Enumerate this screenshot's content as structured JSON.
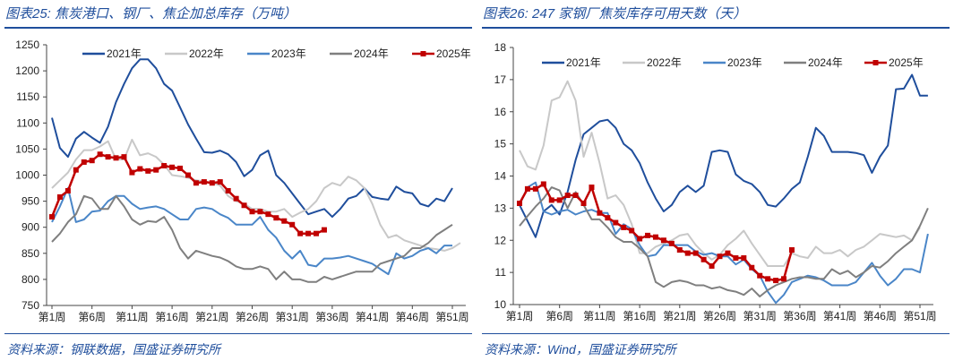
{
  "chart_data": [
    {
      "type": "line",
      "title": "图表25:  焦炭港口、钢厂、焦企加总库存（万吨）",
      "source": "资料来源：钢联数据，国盛证券研究所",
      "ylim": [
        750,
        1250
      ],
      "yticks": [
        750,
        800,
        850,
        900,
        950,
        1000,
        1050,
        1100,
        1150,
        1200,
        1250
      ],
      "xticklabels": [
        "第1周",
        "第6周",
        "第11周",
        "第16周",
        "第21周",
        "第26周",
        "第31周",
        "第36周",
        "第41周",
        "第46周",
        "第51周"
      ],
      "xlabel": "",
      "ylabel": "",
      "legend": "top",
      "grid": false,
      "series": [
        {
          "name": "2021年",
          "color": "#1f4e9c",
          "values": [
            1110,
            1052,
            1035,
            1070,
            1083,
            1072,
            1062,
            1093,
            1140,
            1175,
            1205,
            1222,
            1222,
            1205,
            1175,
            1162,
            1130,
            1097,
            1070,
            1044,
            1043,
            1047,
            1040,
            1025,
            998,
            1010,
            1038,
            1047,
            1000,
            985,
            965,
            945,
            925,
            930,
            935,
            920,
            935,
            955,
            960,
            975,
            958,
            955,
            953,
            978,
            968,
            965,
            945,
            940,
            955,
            950,
            975
          ]
        },
        {
          "name": "2022年",
          "color": "#c8c8c8",
          "values": [
            975,
            990,
            1005,
            1030,
            1048,
            1048,
            1055,
            1065,
            1030,
            1030,
            1068,
            1038,
            1042,
            1035,
            1020,
            1000,
            998,
            995,
            990,
            988,
            985,
            980,
            960,
            950,
            945,
            935,
            935,
            930,
            930,
            935,
            920,
            928,
            935,
            950,
            975,
            985,
            980,
            997,
            990,
            975,
            945,
            905,
            880,
            885,
            875,
            870,
            865,
            860,
            858,
            855,
            860,
            870
          ]
        },
        {
          "name": "2023年",
          "color": "#4a86c8",
          "values": [
            910,
            940,
            975,
            910,
            915,
            930,
            932,
            950,
            960,
            960,
            945,
            935,
            938,
            940,
            935,
            925,
            915,
            915,
            935,
            938,
            935,
            925,
            918,
            905,
            905,
            905,
            920,
            895,
            880,
            855,
            840,
            855,
            828,
            825,
            840,
            840,
            842,
            845,
            840,
            835,
            830,
            820,
            810,
            850,
            840,
            845,
            855,
            860,
            850,
            865,
            865
          ]
        },
        {
          "name": "2024年",
          "color": "#7f7f7f",
          "values": [
            872,
            888,
            910,
            925,
            960,
            955,
            935,
            935,
            960,
            940,
            915,
            905,
            912,
            910,
            920,
            895,
            860,
            840,
            855,
            850,
            845,
            842,
            835,
            825,
            820,
            820,
            825,
            820,
            800,
            815,
            800,
            800,
            795,
            795,
            805,
            800,
            805,
            810,
            815,
            815,
            815,
            830,
            835,
            840,
            845,
            860,
            860,
            870,
            885,
            895,
            905
          ]
        },
        {
          "name": "2025年",
          "color": "#c00000",
          "marker": true,
          "values": [
            920,
            958,
            970,
            1010,
            1025,
            1028,
            1040,
            1035,
            1033,
            1035,
            1005,
            1012,
            1008,
            1010,
            1018,
            1015,
            1013,
            1000,
            985,
            987,
            985,
            987,
            970,
            955,
            942,
            930,
            930,
            925,
            918,
            912,
            905,
            888,
            888,
            888,
            895
          ]
        }
      ]
    },
    {
      "type": "line",
      "title": "图表26:  247 家钢厂焦炭库存可用天数（天）",
      "source": "资料来源：Wind，国盛证券研究所",
      "ylim": [
        10,
        18
      ],
      "yticks": [
        10,
        11,
        12,
        13,
        14,
        15,
        16,
        17,
        18
      ],
      "xticklabels": [
        "第1周",
        "第6周",
        "第11周",
        "第16周",
        "第21周",
        "第26周",
        "第31周",
        "第36周",
        "第41周",
        "第46周",
        "第51周"
      ],
      "xlabel": "",
      "ylabel": "",
      "legend": "top",
      "grid": false,
      "series": [
        {
          "name": "2021年",
          "color": "#1f4e9c",
          "values": [
            13.1,
            12.6,
            12.1,
            12.9,
            13.1,
            12.8,
            13.5,
            14.5,
            15.3,
            15.5,
            15.7,
            15.75,
            15.5,
            15.0,
            14.8,
            14.4,
            13.8,
            13.3,
            12.9,
            13.1,
            13.5,
            13.7,
            13.5,
            13.7,
            14.75,
            14.8,
            14.75,
            14.05,
            13.85,
            13.75,
            13.5,
            13.1,
            13.05,
            13.3,
            13.6,
            13.8,
            14.6,
            15.5,
            15.25,
            14.75,
            14.75,
            14.75,
            14.72,
            14.65,
            14.1,
            14.6,
            14.95,
            16.7,
            16.72,
            17.15,
            16.5,
            16.5
          ]
        },
        {
          "name": "2022年",
          "color": "#c8c8c8",
          "values": [
            14.8,
            14.3,
            14.2,
            14.95,
            16.35,
            16.45,
            16.95,
            16.35,
            14.6,
            15.35,
            14.4,
            13.3,
            13.4,
            13.1,
            12.5,
            11.6,
            11.6,
            11.8,
            11.9,
            12.0,
            12.15,
            12.2,
            11.85,
            11.6,
            11.4,
            11.55,
            11.85,
            12.05,
            12.3,
            11.9,
            11.55,
            11.2,
            11.2,
            11.2,
            11.6,
            11.5,
            11.45,
            11.8,
            11.6,
            11.6,
            11.7,
            11.5,
            11.7,
            11.8,
            12.0,
            12.2,
            12.15,
            12.1,
            12.15,
            12.0,
            12.4
          ]
        },
        {
          "name": "2023年",
          "color": "#4a86c8",
          "values": [
            13.1,
            13.65,
            13.8,
            12.9,
            12.8,
            12.9,
            12.95,
            12.8,
            12.9,
            12.95,
            12.85,
            12.85,
            12.2,
            12.5,
            12.35,
            11.85,
            11.5,
            11.55,
            11.85,
            11.85,
            11.85,
            11.85,
            11.65,
            11.55,
            11.6,
            11.5,
            11.5,
            11.25,
            11.4,
            11.1,
            10.9,
            10.4,
            10.05,
            10.3,
            10.7,
            10.8,
            10.9,
            10.85,
            10.75,
            10.6,
            10.6,
            10.6,
            10.7,
            11.0,
            11.3,
            10.9,
            10.6,
            10.8,
            11.1,
            11.1,
            11.0,
            12.2
          ]
        },
        {
          "name": "2024年",
          "color": "#7f7f7f",
          "values": [
            12.45,
            12.75,
            13.05,
            13.3,
            13.65,
            13.55,
            13.0,
            13.5,
            13.1,
            12.65,
            12.65,
            12.4,
            12.1,
            11.95,
            11.95,
            11.75,
            11.5,
            10.7,
            10.55,
            10.7,
            10.75,
            10.7,
            10.6,
            10.6,
            10.5,
            10.55,
            10.45,
            10.4,
            10.3,
            10.5,
            10.25,
            10.45,
            10.6,
            10.7,
            10.8,
            10.85,
            10.85,
            10.8,
            10.8,
            11.1,
            10.95,
            11.05,
            10.85,
            11.0,
            11.2,
            11.15,
            11.35,
            11.6,
            11.8,
            12.0,
            12.45,
            13.0
          ]
        },
        {
          "name": "2025年",
          "color": "#c00000",
          "marker": true,
          "values": [
            13.15,
            13.6,
            13.6,
            13.75,
            13.25,
            13.25,
            13.4,
            13.4,
            13.15,
            13.65,
            12.85,
            12.7,
            12.55,
            12.4,
            12.3,
            12.05,
            12.15,
            12.1,
            12.0,
            11.9,
            11.7,
            11.6,
            11.6,
            11.4,
            11.2,
            11.5,
            11.6,
            11.45,
            11.45,
            11.15,
            10.9,
            10.8,
            10.75,
            10.8,
            11.7
          ]
        }
      ]
    }
  ]
}
